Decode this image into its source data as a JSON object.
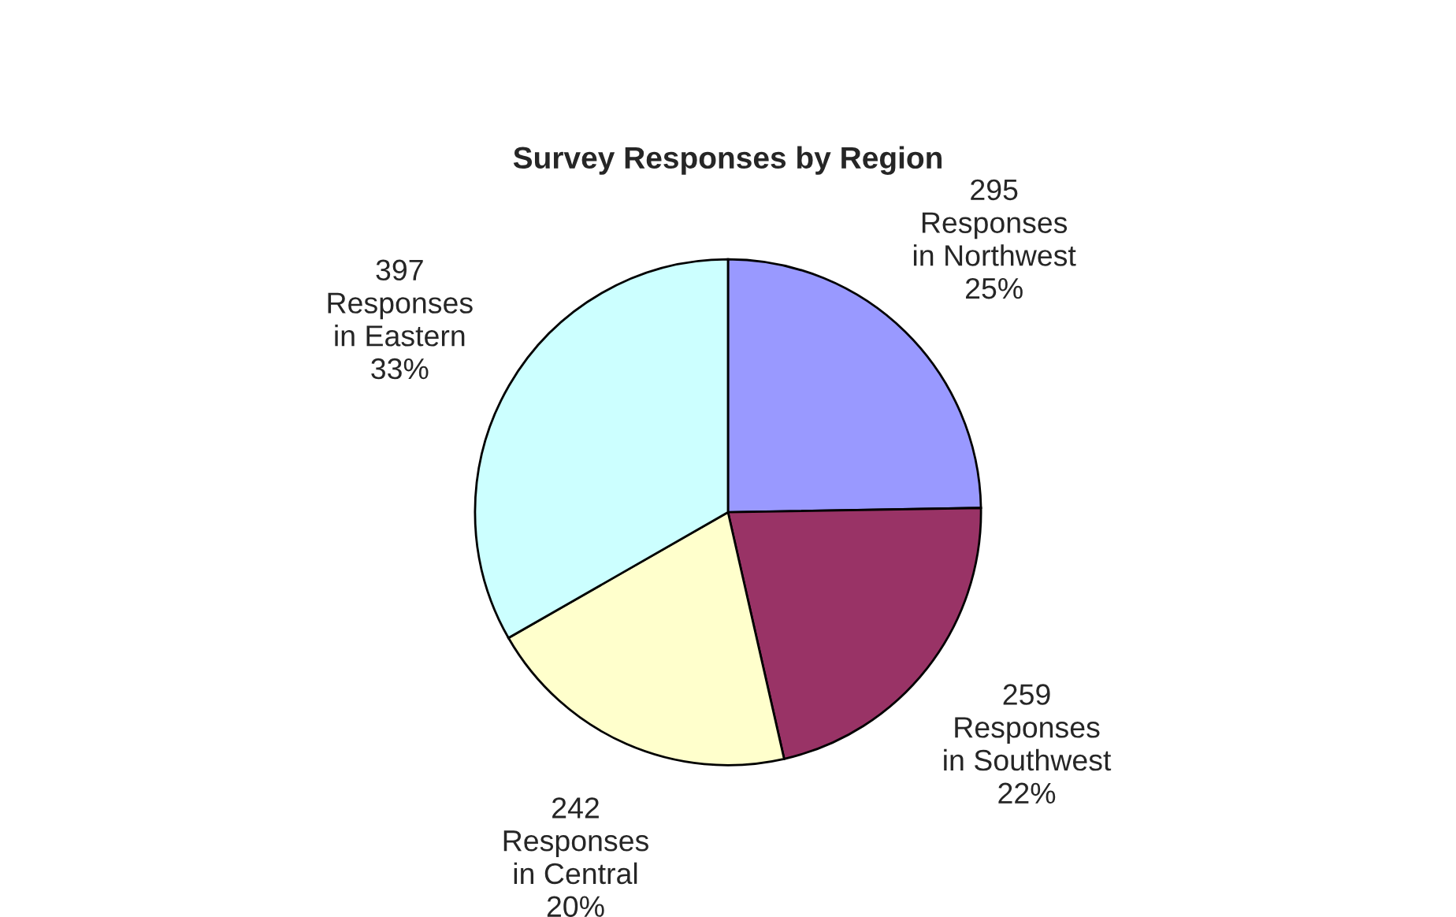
{
  "chart_data": {
    "type": "pie",
    "title": "Survey Responses by Region",
    "categories": [
      null,
      null,
      null,
      null
    ],
    "values": [
      295,
      259,
      242,
      397
    ],
    "colors": [
      "#9999ff",
      "#993366",
      "#ffffcc",
      "#ccffff"
    ],
    "value_labels": [
      "295\nResponses\nin Northwest\n25%",
      "259\nResponses\nin Southwest\n22%",
      "242\nResponses\nin Central\n20%",
      "397\nResponses\nin Eastern\n33%"
    ]
  }
}
